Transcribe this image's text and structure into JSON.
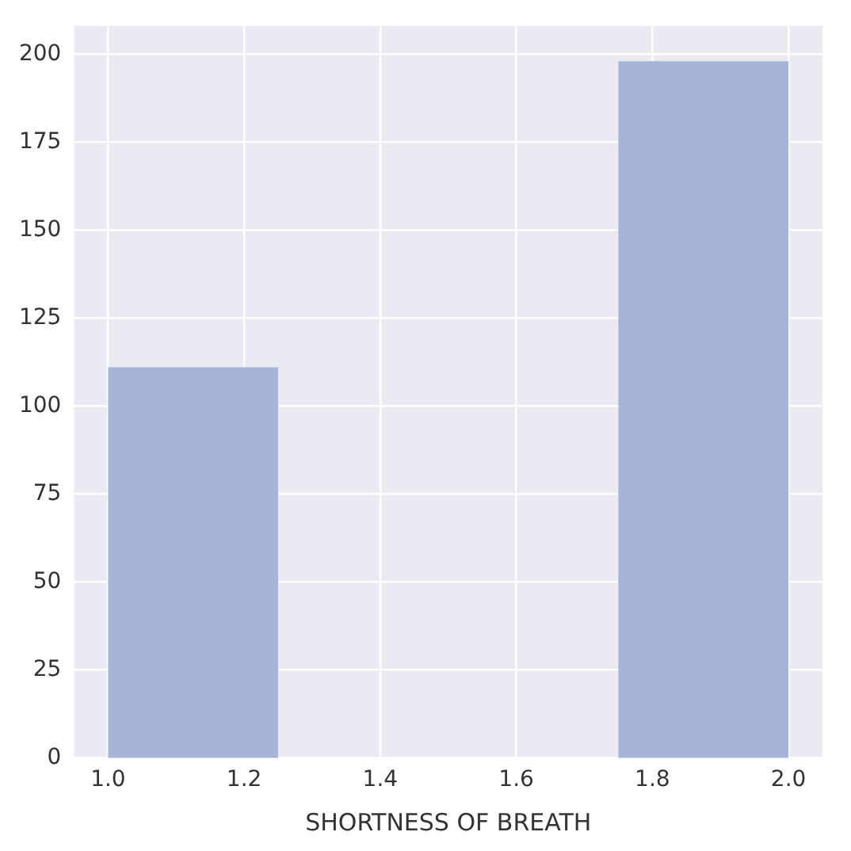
{
  "chart_data": {
    "type": "histogram",
    "xlabel": "SHORTNESS OF BREATH",
    "bins": [
      1.0,
      1.25,
      1.5,
      1.75,
      2.0
    ],
    "values": [
      111,
      0,
      0,
      198
    ],
    "color": "#a6b5d7",
    "xlim": [
      0.95,
      2.05
    ],
    "xticks": [
      {
        "value": 1.0,
        "label": "1.0"
      },
      1.2,
      1.4,
      1.6,
      1.8,
      {
        "value": 2.0,
        "label": "2.0"
      }
    ],
    "ylim": [
      0,
      208
    ],
    "yticks": [
      0,
      25,
      50,
      75,
      100,
      125,
      150,
      175,
      200
    ],
    "grid": true
  }
}
